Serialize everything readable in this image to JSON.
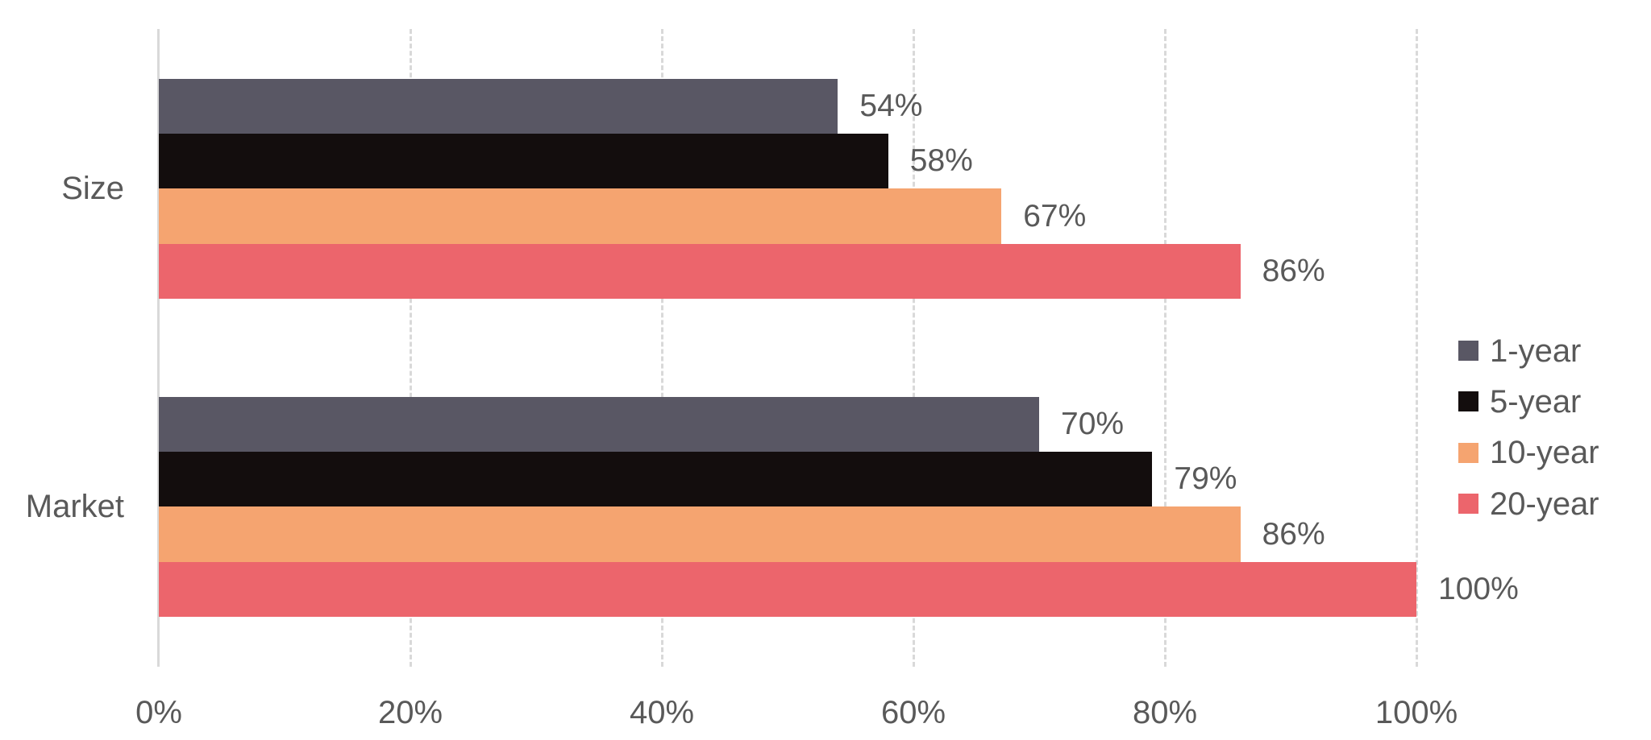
{
  "chart_data": {
    "type": "bar",
    "orientation": "horizontal",
    "title": "",
    "xlabel": "",
    "ylabel": "",
    "categories": [
      "Size",
      "Market"
    ],
    "series": [
      {
        "name": "1-year",
        "color": "#595764",
        "values": [
          54,
          70
        ],
        "labels": [
          "54%",
          "70%"
        ]
      },
      {
        "name": "5-year",
        "color": "#130d0d",
        "values": [
          58,
          79
        ],
        "labels": [
          "58%",
          "79%"
        ]
      },
      {
        "name": "10-year",
        "color": "#f5a470",
        "values": [
          67,
          86
        ],
        "labels": [
          "67%",
          "86%"
        ]
      },
      {
        "name": "20-year",
        "color": "#ec656c",
        "values": [
          86,
          100
        ],
        "labels": [
          "86%",
          "100%"
        ]
      }
    ],
    "xlim": [
      0,
      100
    ],
    "x_ticks": [
      "0%",
      "20%",
      "40%",
      "60%",
      "80%",
      "100%"
    ],
    "grid": {
      "vertical": true,
      "style": "dashed",
      "color": "#d9d9d9"
    },
    "legend": {
      "position": "right",
      "entries": [
        "1-year",
        "5-year",
        "10-year",
        "20-year"
      ]
    }
  }
}
